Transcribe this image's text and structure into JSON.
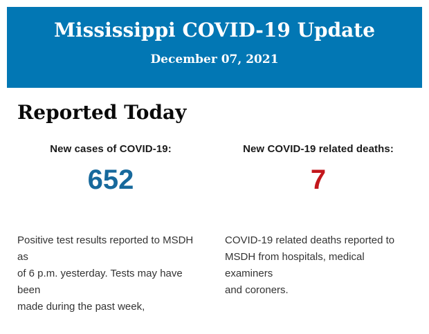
{
  "header": {
    "title": "Mississippi COVID-19 Update",
    "date": "December 07, 2021",
    "background_color": "#0277b4",
    "text_color": "#ffffff"
  },
  "main": {
    "section_title": "Reported Today",
    "columns": [
      {
        "label": "New cases of COVID-19:",
        "value": "652",
        "value_color": "#17699c",
        "description": "Positive test results reported to MSDH as\nof 6 p.m. yesterday. Tests may have been\nmade during the past week,"
      },
      {
        "label": "New COVID-19 related deaths:",
        "value": "7",
        "value_color": "#c3171c",
        "description": "COVID-19 related deaths reported to\nMSDH from hospitals, medical examiners\nand coroners."
      }
    ]
  }
}
